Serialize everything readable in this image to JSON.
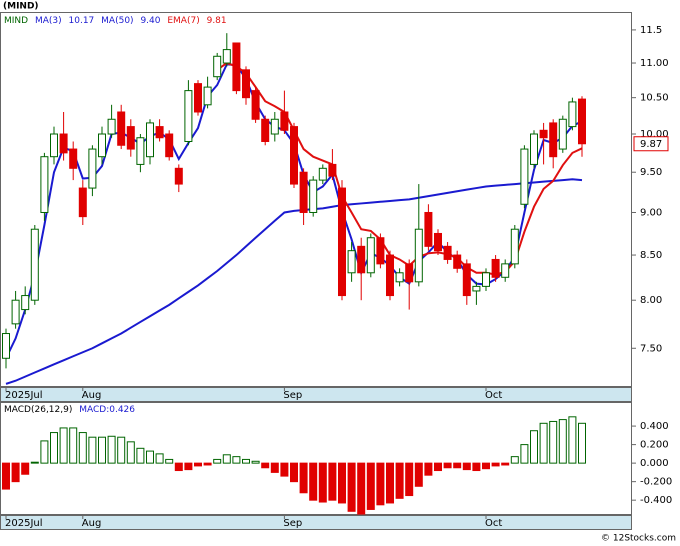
{
  "chart_data": [
    {
      "type": "candlestick",
      "title": "(MIND)",
      "ticker": "MIND",
      "log_scale": true,
      "categories": [
        "2025Jul",
        null,
        null,
        null,
        null,
        null,
        null,
        null,
        "Aug",
        null,
        null,
        null,
        null,
        null,
        null,
        null,
        null,
        null,
        null,
        null,
        null,
        null,
        null,
        null,
        null,
        null,
        null,
        null,
        null,
        "Sep",
        null,
        null,
        null,
        null,
        null,
        null,
        null,
        null,
        null,
        null,
        null,
        null,
        null,
        null,
        null,
        null,
        null,
        null,
        null,
        null,
        "Oct",
        null,
        null,
        null,
        null,
        null,
        null,
        null,
        null,
        null,
        null
      ],
      "open": [
        7.4,
        7.75,
        7.9,
        8.0,
        9.0,
        9.7,
        10.0,
        9.8,
        9.3,
        9.3,
        9.7,
        10.0,
        10.3,
        10.1,
        9.6,
        9.7,
        10.1,
        10.0,
        9.55,
        9.9,
        10.7,
        10.4,
        10.8,
        11.0,
        11.3,
        10.9,
        10.6,
        10.2,
        10.0,
        10.3,
        10.1,
        9.5,
        9.0,
        9.4,
        9.6,
        9.3,
        8.3,
        8.6,
        8.3,
        8.7,
        8.5,
        8.2,
        8.4,
        8.2,
        9.0,
        8.75,
        8.6,
        8.5,
        8.4,
        8.1,
        8.15,
        8.45,
        8.25,
        8.4,
        9.1,
        9.6,
        10.05,
        10.15,
        9.8,
        10.1,
        10.48
      ],
      "high": [
        7.7,
        8.1,
        8.15,
        8.85,
        9.75,
        10.1,
        10.3,
        9.9,
        9.4,
        9.85,
        10.1,
        10.4,
        10.4,
        10.2,
        10.0,
        10.2,
        10.2,
        10.05,
        9.6,
        10.75,
        10.75,
        10.8,
        11.15,
        11.45,
        11.3,
        10.95,
        10.65,
        10.25,
        10.3,
        10.6,
        10.15,
        9.55,
        9.45,
        9.6,
        9.8,
        9.4,
        8.65,
        8.7,
        8.75,
        8.75,
        8.55,
        8.35,
        8.45,
        9.35,
        9.1,
        8.8,
        8.65,
        8.55,
        8.45,
        8.2,
        8.35,
        8.5,
        8.45,
        8.85,
        9.85,
        10.05,
        10.15,
        10.2,
        10.25,
        10.5,
        10.52
      ],
      "low": [
        7.3,
        7.7,
        7.85,
        7.95,
        8.9,
        9.6,
        9.65,
        9.4,
        8.85,
        9.2,
        9.6,
        9.95,
        9.8,
        9.7,
        9.5,
        9.6,
        9.9,
        9.65,
        9.25,
        9.85,
        10.25,
        10.35,
        10.75,
        10.95,
        10.55,
        10.4,
        10.15,
        9.85,
        9.9,
        10.0,
        9.3,
        8.85,
        8.95,
        9.35,
        9.4,
        8.0,
        8.2,
        8.0,
        8.25,
        8.35,
        8.0,
        8.15,
        7.9,
        8.15,
        8.55,
        8.5,
        8.4,
        8.3,
        7.95,
        7.95,
        8.1,
        8.2,
        8.2,
        8.35,
        9.05,
        9.55,
        9.6,
        9.55,
        9.75,
        10.05,
        9.7
      ],
      "close": [
        7.65,
        8.0,
        8.05,
        8.8,
        9.7,
        10.0,
        9.75,
        9.55,
        8.95,
        9.8,
        10.0,
        10.2,
        9.85,
        9.8,
        9.95,
        10.15,
        9.95,
        9.7,
        9.35,
        10.6,
        10.3,
        10.65,
        11.1,
        11.2,
        10.6,
        10.5,
        10.2,
        9.9,
        10.2,
        10.05,
        9.35,
        9.0,
        9.4,
        9.55,
        9.45,
        8.05,
        8.55,
        8.3,
        8.7,
        8.4,
        8.05,
        8.3,
        8.2,
        8.8,
        8.6,
        8.55,
        8.45,
        8.35,
        8.05,
        8.15,
        8.3,
        8.25,
        8.4,
        8.8,
        9.8,
        10.0,
        9.95,
        9.7,
        10.2,
        10.44,
        9.87
      ],
      "up_color": "#006400",
      "down_color": "#e00000",
      "series": [
        {
          "name": "MA(3)",
          "color": "#1a1ad0",
          "last": 10.17,
          "values": [
            7.4,
            7.6,
            7.9,
            8.28,
            8.85,
            9.5,
            9.82,
            9.77,
            9.42,
            9.43,
            9.58,
            10.0,
            10.02,
            9.95,
            9.87,
            9.97,
            10.02,
            9.93,
            9.67,
            9.88,
            10.08,
            10.52,
            10.68,
            10.98,
            10.97,
            10.77,
            10.43,
            10.2,
            10.1,
            10.05,
            9.87,
            9.47,
            9.25,
            9.32,
            9.47,
            9.02,
            8.68,
            8.3,
            8.52,
            8.47,
            8.38,
            8.25,
            8.18,
            8.43,
            8.53,
            8.65,
            8.53,
            8.45,
            8.28,
            8.18,
            8.17,
            8.23,
            8.32,
            8.48,
            9.0,
            9.53,
            9.92,
            9.88,
            9.95,
            10.11,
            10.17
          ]
        },
        {
          "name": "MA(50)",
          "color": "#1a1ad0",
          "last": {
            "value": 9.4,
            "label": "9.40"
          },
          "values": [
            7.15,
            7.18,
            7.22,
            7.26,
            7.3,
            7.34,
            7.38,
            7.42,
            7.46,
            7.5,
            7.55,
            7.6,
            7.65,
            7.71,
            7.77,
            7.83,
            7.89,
            7.95,
            8.02,
            8.09,
            8.16,
            8.24,
            8.32,
            8.41,
            8.5,
            8.6,
            8.7,
            8.8,
            8.9,
            9.0,
            9.02,
            9.03,
            9.04,
            9.05,
            9.07,
            9.09,
            9.1,
            9.11,
            9.12,
            9.13,
            9.14,
            9.15,
            9.16,
            9.18,
            9.2,
            9.22,
            9.24,
            9.26,
            9.28,
            9.3,
            9.32,
            9.33,
            9.34,
            9.35,
            9.36,
            9.37,
            9.38,
            9.39,
            9.4,
            9.41,
            9.4
          ]
        },
        {
          "name": "EMA(7)",
          "color": "#e01010",
          "last": 9.81,
          "values": [
            null,
            null,
            null,
            null,
            null,
            null,
            null,
            null,
            null,
            null,
            null,
            null,
            null,
            null,
            null,
            null,
            null,
            null,
            null,
            null,
            null,
            null,
            10.9,
            11.0,
            10.95,
            10.85,
            10.65,
            10.45,
            10.38,
            10.3,
            10.05,
            9.8,
            9.7,
            9.65,
            9.6,
            9.2,
            9.0,
            8.8,
            8.78,
            8.68,
            8.5,
            8.45,
            8.38,
            8.48,
            8.52,
            8.53,
            8.51,
            8.47,
            8.36,
            8.3,
            8.3,
            8.28,
            8.31,
            8.43,
            8.77,
            9.07,
            9.29,
            9.39,
            9.59,
            9.75,
            9.81
          ]
        }
      ],
      "last_price": 9.87,
      "ylim": [
        7.12,
        11.78
      ],
      "yticks": [
        {
          "value": 7.5,
          "label": "7.50"
        },
        {
          "value": 8,
          "label": "8.00"
        },
        {
          "value": 8.5,
          "label": "8.50"
        },
        {
          "value": 9,
          "label": "9.00"
        },
        {
          "value": 9.5,
          "label": "9.50"
        },
        {
          "value": 10,
          "label": "10.00"
        },
        {
          "value": 10.5,
          "label": "10.50"
        },
        {
          "value": 11,
          "label": "11.00"
        },
        11.5
      ]
    },
    {
      "type": "bar",
      "title": "MACD(26,12,9)",
      "subtitle": "MACD:0.426",
      "positive_color": "#006400",
      "negative_color": "#e00000",
      "values": [
        -0.28,
        -0.2,
        -0.12,
        0.01,
        0.24,
        0.33,
        0.38,
        0.38,
        0.33,
        0.28,
        0.28,
        0.29,
        0.28,
        0.23,
        0.16,
        0.13,
        0.1,
        0.04,
        -0.08,
        -0.07,
        -0.03,
        -0.02,
        0.04,
        0.09,
        0.07,
        0.04,
        0.02,
        -0.05,
        -0.1,
        -0.14,
        -0.2,
        -0.32,
        -0.4,
        -0.42,
        -0.4,
        -0.43,
        -0.52,
        -0.55,
        -0.5,
        -0.45,
        -0.43,
        -0.38,
        -0.35,
        -0.25,
        -0.13,
        -0.08,
        -0.05,
        -0.05,
        -0.07,
        -0.08,
        -0.06,
        -0.03,
        -0.02,
        0.07,
        0.2,
        0.35,
        0.43,
        0.45,
        0.47,
        0.5,
        0.43
      ],
      "ylim": [
        -0.56,
        0.66
      ],
      "yticks": [
        {
          "value": -0.4,
          "label": "-0.400"
        },
        {
          "value": -0.2,
          "label": "-0.200"
        },
        {
          "value": 0,
          "label": "0.000"
        },
        {
          "value": 0.2,
          "label": "0.200"
        },
        {
          "value": 0.4,
          "label": "0.400"
        }
      ]
    }
  ],
  "footer": "© 12Stocks.com"
}
